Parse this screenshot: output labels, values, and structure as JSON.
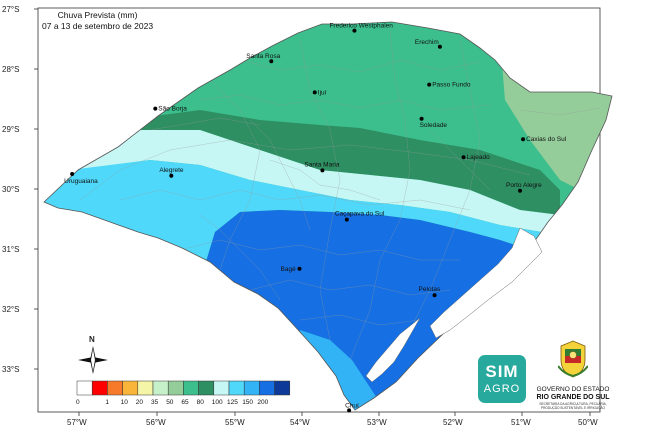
{
  "title": {
    "line1": "Chuva Prevista (mm)",
    "line2": "07 a 13 de setembro de 2023"
  },
  "axes": {
    "lat_labels": [
      "27°S",
      "28°S",
      "29°S",
      "30°S",
      "31°S",
      "32°S",
      "33°S"
    ],
    "lon_labels": [
      "57°W",
      "56°W",
      "55°W",
      "54°W",
      "53°W",
      "52°W",
      "51°W",
      "50°W"
    ]
  },
  "legend": {
    "colors": [
      "#ffffff",
      "#ff0000",
      "#f7792a",
      "#f9b53a",
      "#f4f5a6",
      "#c6f0c9",
      "#94cc9a",
      "#3cbf8d",
      "#2e8f63",
      "#c6f7f4",
      "#4fd8f9",
      "#32b3f5",
      "#1670e3",
      "#0d3a98"
    ],
    "ticks": [
      "0",
      "1",
      "10",
      "20",
      "35",
      "50",
      "65",
      "80",
      "100",
      "125",
      "150",
      "200"
    ]
  },
  "north_arrow": {
    "label": "N"
  },
  "cities": [
    {
      "name": "Frederico Westphalen",
      "lon": -53.39,
      "lat": -27.36
    },
    {
      "name": "Erechim",
      "lon": -52.27,
      "lat": -27.63
    },
    {
      "name": "Santa Rosa",
      "lon": -54.48,
      "lat": -27.87
    },
    {
      "name": "Ijuí",
      "lon": -53.91,
      "lat": -28.39
    },
    {
      "name": "Passo Fundo",
      "lon": -52.41,
      "lat": -28.26
    },
    {
      "name": "São Borja",
      "lon": -56.0,
      "lat": -28.66
    },
    {
      "name": "Soledade",
      "lon": -52.51,
      "lat": -28.83
    },
    {
      "name": "Caxias do Sul",
      "lon": -51.18,
      "lat": -29.17
    },
    {
      "name": "Lajeado",
      "lon": -51.96,
      "lat": -29.47
    },
    {
      "name": "Santa Maria",
      "lon": -53.81,
      "lat": -29.69
    },
    {
      "name": "Porto Alegre",
      "lon": -51.22,
      "lat": -30.03
    },
    {
      "name": "Uruguaiana",
      "lon": -57.09,
      "lat": -29.75
    },
    {
      "name": "Alegrete",
      "lon": -55.79,
      "lat": -29.78
    },
    {
      "name": "Caçapava do Sul",
      "lon": -53.49,
      "lat": -30.51
    },
    {
      "name": "Bagé",
      "lon": -54.11,
      "lat": -31.33
    },
    {
      "name": "Pelotas",
      "lon": -52.34,
      "lat": -31.77
    },
    {
      "name": "Chuí",
      "lon": -53.46,
      "lat": -33.69
    }
  ],
  "logo": {
    "line1": "SIM",
    "line2": "AGRO"
  },
  "government": {
    "line1": "GOVERNO DO ESTADO",
    "line2": "RIO GRANDE DO SUL",
    "line3": "SECRETARIA DA AGRICULTURA, PECUÁRIA, PRODUÇÃO SUSTENTÁVEL E IRRIGAÇÃO"
  }
}
